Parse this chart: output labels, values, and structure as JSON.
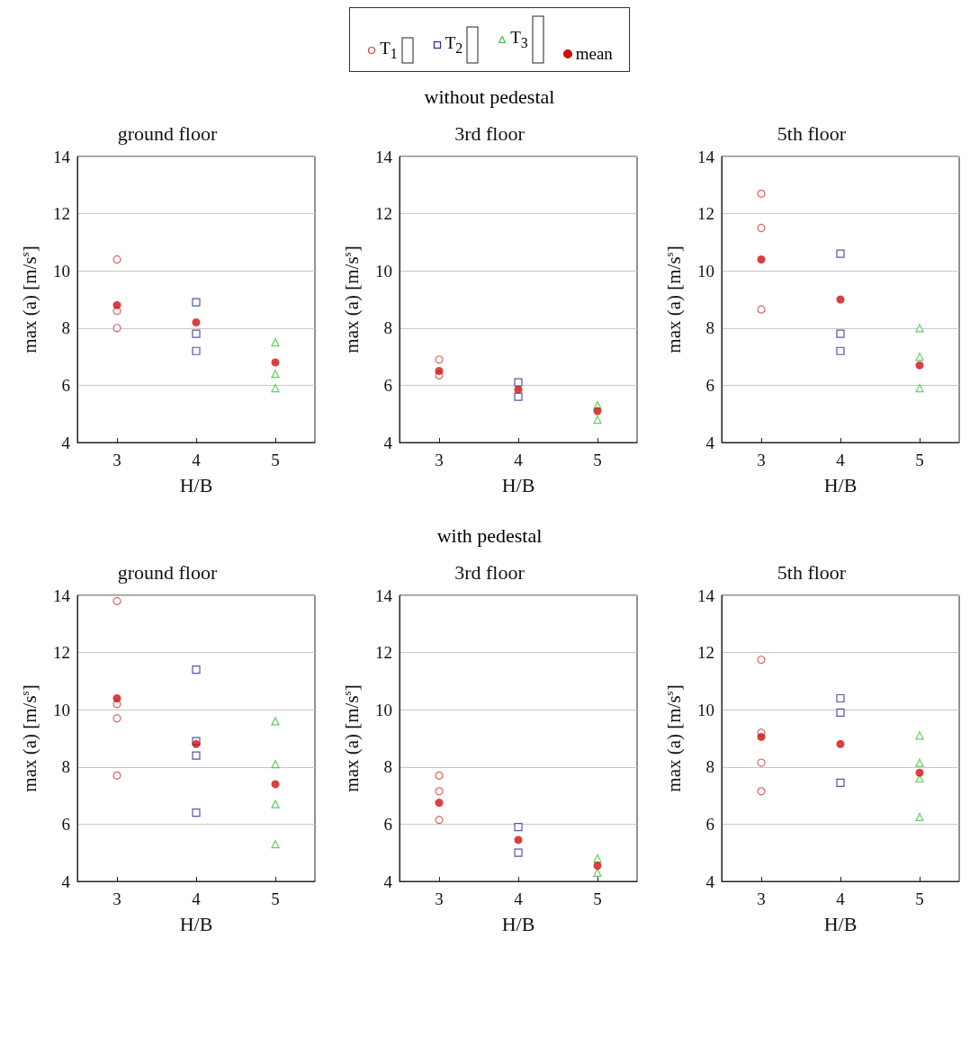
{
  "chart_data": [
    {
      "type": "scatter",
      "title": "ground floor",
      "xlabel": "H/B",
      "ylabel": "max (a) [m/s$^{s}$]",
      "xlim": [
        2.5,
        5.5
      ],
      "xticks": [
        3,
        4,
        5
      ],
      "ylim": [
        4,
        14
      ],
      "yticks": [
        4,
        6,
        8,
        10,
        12,
        14
      ],
      "grid": "y",
      "legend": "top",
      "series": [
        {
          "name": "T$_{1}$",
          "color": "#d04040",
          "marker": "circle",
          "x": [
            3,
            3,
            3
          ],
          "values": [
            10.4,
            8.6,
            8.0
          ]
        },
        {
          "name": "T$_{2}$",
          "color": "#2a2a8a",
          "marker": "square",
          "x": [
            4,
            4,
            4
          ],
          "values": [
            8.9,
            7.8,
            7.2
          ]
        },
        {
          "name": "T$_{3}$",
          "color": "#3cc03c",
          "marker": "triangle",
          "x": [
            5,
            5,
            5
          ],
          "values": [
            7.5,
            6.4,
            5.9
          ]
        },
        {
          "name": "mean",
          "color": "#d01010",
          "marker": "circle",
          "x": [
            3,
            4,
            5
          ],
          "values": [
            8.8,
            8.2,
            6.8
          ]
        }
      ]
    },
    {
      "type": "scatter",
      "title": "3rd floor",
      "subtitle": "without pedestal",
      "xlabel": "H/B",
      "ylabel": "max (a) [m/s$^{s}$]",
      "xlim": [
        2.5,
        5.5
      ],
      "xticks": [
        3,
        4,
        5
      ],
      "ylim": [
        4,
        14
      ],
      "yticks": [
        4,
        6,
        8,
        10,
        12,
        14
      ],
      "grid": "y",
      "series": [
        {
          "color": "#d04040",
          "marker": "circle",
          "x": [
            3,
            3
          ],
          "values": [
            6.9,
            6.35
          ]
        },
        {
          "color": "#2a2a8a",
          "marker": "square",
          "x": [
            4,
            4
          ],
          "values": [
            6.1,
            5.6
          ]
        },
        {
          "color": "#3cc03c",
          "marker": "triangle",
          "x": [
            5,
            5
          ],
          "values": [
            5.3,
            4.8
          ]
        },
        {
          "color": "#d01010",
          "marker": "circle",
          "x": [
            3,
            4,
            5
          ],
          "values": [
            6.5,
            5.85,
            5.1
          ]
        }
      ]
    },
    {
      "type": "scatter",
      "title": "5th floor",
      "xlabel": "H/B",
      "ylabel": "max (a) [m/s$^{s}$]",
      "xlim": [
        2.5,
        5.5
      ],
      "xticks": [
        3,
        4,
        5
      ],
      "ylim": [
        4,
        14
      ],
      "yticks": [
        4,
        6,
        8,
        10,
        12,
        14
      ],
      "grid": "y",
      "series": [
        {
          "color": "#d04040",
          "marker": "circle",
          "x": [
            3,
            3,
            3
          ],
          "values": [
            12.7,
            11.5,
            8.65
          ]
        },
        {
          "color": "#2a2a8a",
          "marker": "square",
          "x": [
            4,
            4,
            4
          ],
          "values": [
            10.6,
            7.8,
            7.2
          ]
        },
        {
          "color": "#3cc03c",
          "marker": "triangle",
          "x": [
            5,
            5,
            5
          ],
          "values": [
            8.0,
            7.0,
            5.9
          ]
        },
        {
          "color": "#d01010",
          "marker": "circle",
          "x": [
            3,
            4,
            5
          ],
          "values": [
            10.4,
            9.0,
            6.7
          ]
        }
      ]
    },
    {
      "type": "scatter",
      "title": "ground floor",
      "xlabel": "H/B",
      "ylabel": "max (a) [m/s$^{s}$]",
      "xlim": [
        2.5,
        5.5
      ],
      "xticks": [
        3,
        4,
        5
      ],
      "ylim": [
        4,
        14
      ],
      "yticks": [
        4,
        6,
        8,
        10,
        12,
        14
      ],
      "grid": "y",
      "series": [
        {
          "color": "#d04040",
          "marker": "circle",
          "x": [
            3,
            3,
            3,
            3
          ],
          "values": [
            13.8,
            10.2,
            9.7,
            7.7
          ]
        },
        {
          "color": "#2a2a8a",
          "marker": "square",
          "x": [
            4,
            4,
            4,
            4
          ],
          "values": [
            11.4,
            8.9,
            8.4,
            6.4
          ]
        },
        {
          "color": "#3cc03c",
          "marker": "triangle",
          "x": [
            5,
            5,
            5,
            5
          ],
          "values": [
            9.6,
            8.1,
            6.7,
            5.3
          ]
        },
        {
          "color": "#d01010",
          "marker": "circle",
          "x": [
            3,
            4,
            5
          ],
          "values": [
            10.4,
            8.8,
            7.4
          ]
        }
      ]
    },
    {
      "type": "scatter",
      "title": "3rd floor",
      "subtitle": "with pedestal",
      "xlabel": "H/B",
      "ylabel": "max (a) [m/s$^{s}$]",
      "xlim": [
        2.5,
        5.5
      ],
      "xticks": [
        3,
        4,
        5
      ],
      "ylim": [
        4,
        14
      ],
      "yticks": [
        4,
        6,
        8,
        10,
        12,
        14
      ],
      "grid": "y",
      "series": [
        {
          "color": "#d04040",
          "marker": "circle",
          "x": [
            3,
            3,
            3
          ],
          "values": [
            7.7,
            7.15,
            6.15
          ]
        },
        {
          "color": "#2a2a8a",
          "marker": "square",
          "x": [
            4,
            4
          ],
          "values": [
            5.9,
            5.0
          ]
        },
        {
          "color": "#3cc03c",
          "marker": "triangle",
          "x": [
            5,
            5
          ],
          "values": [
            4.8,
            4.3
          ]
        },
        {
          "color": "#d01010",
          "marker": "circle",
          "x": [
            3,
            4,
            5
          ],
          "values": [
            6.75,
            5.45,
            4.55
          ]
        }
      ]
    },
    {
      "type": "scatter",
      "title": "5th floor",
      "xlabel": "H/B",
      "ylabel": "max (a) [m/s$^{s}$]",
      "xlim": [
        2.5,
        5.5
      ],
      "xticks": [
        3,
        4,
        5
      ],
      "ylim": [
        4,
        14
      ],
      "yticks": [
        4,
        6,
        8,
        10,
        12,
        14
      ],
      "grid": "y",
      "series": [
        {
          "color": "#d04040",
          "marker": "circle",
          "x": [
            3,
            3,
            3,
            3
          ],
          "values": [
            11.75,
            9.2,
            8.15,
            7.15
          ]
        },
        {
          "color": "#2a2a8a",
          "marker": "square",
          "x": [
            4,
            4,
            4
          ],
          "values": [
            10.4,
            9.9,
            7.45
          ]
        },
        {
          "color": "#3cc03c",
          "marker": "triangle",
          "x": [
            5,
            5,
            5,
            5
          ],
          "values": [
            9.1,
            8.15,
            7.6,
            6.25
          ]
        },
        {
          "color": "#d01010",
          "marker": "circle",
          "x": [
            3,
            4,
            5
          ],
          "values": [
            9.05,
            8.8,
            7.8
          ]
        }
      ]
    }
  ]
}
